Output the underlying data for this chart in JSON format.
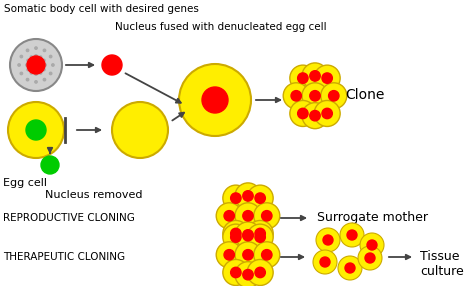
{
  "bg_color": "#ffffff",
  "fig_width": 4.74,
  "fig_height": 2.86,
  "texts": {
    "somatic_label": "Somatic body cell with desired genes",
    "nucleus_fused_label": "Nucleus fused with denucleated egg cell",
    "clone_label": "Clone",
    "egg_cell_label": "Egg cell",
    "nucleus_removed_label": "Nucleus removed",
    "reproductive_label": "REPRODUCTIVE CLONING",
    "surrogate_label": "Surrogate mother",
    "therapeutic_label": "THERAPEUTIC CLONING",
    "tissue_label": "Tissue\nculture"
  },
  "colors": {
    "somatic_cell_body": "#d0d0d0",
    "somatic_cell_border": "#888888",
    "yellow": "#ffee00",
    "yellow_border": "#ccaa00",
    "red": "#ff0000",
    "green": "#00cc00",
    "arrow": "#444444",
    "text": "#000000"
  }
}
